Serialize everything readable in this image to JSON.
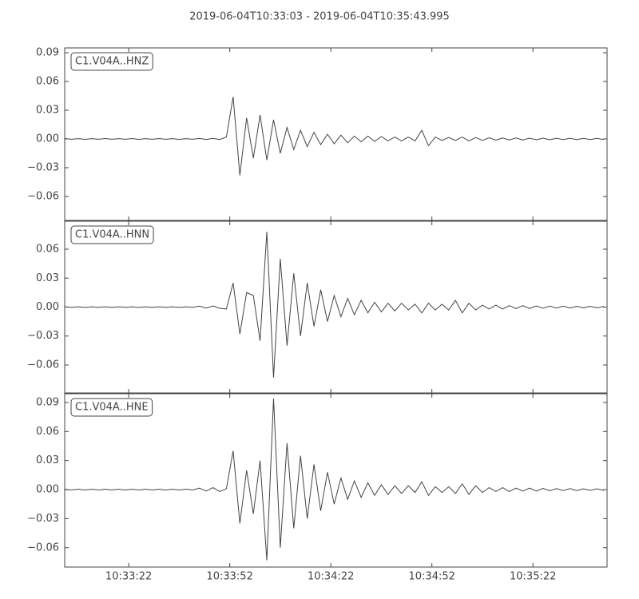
{
  "title": "2019-06-04T10:33:03  -  2019-06-04T10:35:43.995",
  "chart_data": [
    {
      "type": "line",
      "label": "C1.V04A..HNZ",
      "color": "#444444",
      "x": [
        "10:33:03",
        "10:33:05",
        "10:33:07",
        "10:33:09",
        "10:33:11",
        "10:33:13",
        "10:33:15",
        "10:33:17",
        "10:33:19",
        "10:33:21",
        "10:33:23",
        "10:33:25",
        "10:33:27",
        "10:33:29",
        "10:33:31",
        "10:33:33",
        "10:33:35",
        "10:33:37",
        "10:33:39",
        "10:33:41",
        "10:33:43",
        "10:33:45",
        "10:33:47",
        "10:33:49",
        "10:33:51",
        "10:33:53",
        "10:33:55",
        "10:33:57",
        "10:33:59",
        "10:34:01",
        "10:34:03",
        "10:34:05",
        "10:34:07",
        "10:34:09",
        "10:34:11",
        "10:34:13",
        "10:34:15",
        "10:34:17",
        "10:34:19",
        "10:34:21",
        "10:34:23",
        "10:34:25",
        "10:34:27",
        "10:34:29",
        "10:34:31",
        "10:34:33",
        "10:34:35",
        "10:34:37",
        "10:34:39",
        "10:34:41",
        "10:34:43",
        "10:34:45",
        "10:34:47",
        "10:34:49",
        "10:34:51",
        "10:34:53",
        "10:34:55",
        "10:34:57",
        "10:34:59",
        "10:35:01",
        "10:35:03",
        "10:35:05",
        "10:35:07",
        "10:35:09",
        "10:35:11",
        "10:35:13",
        "10:35:15",
        "10:35:17",
        "10:35:19",
        "10:35:21",
        "10:35:23",
        "10:35:25",
        "10:35:27",
        "10:35:29",
        "10:35:31",
        "10:35:33",
        "10:35:35",
        "10:35:37",
        "10:35:39",
        "10:35:41",
        "10:35:43"
      ],
      "values": [
        0.0004,
        -0.0003,
        0.0003,
        -0.0004,
        0.0003,
        -0.0003,
        0.0004,
        -0.0003,
        0.0003,
        -0.0003,
        0.0004,
        -0.0004,
        0.0003,
        -0.0003,
        0.0004,
        -0.0003,
        0.0003,
        -0.0004,
        0.0003,
        -0.0003,
        0.0005,
        -0.0005,
        0.0006,
        -0.0006,
        0.002,
        0.044,
        -0.038,
        0.022,
        -0.02,
        0.025,
        -0.022,
        0.02,
        -0.015,
        0.012,
        -0.011,
        0.009,
        -0.008,
        0.007,
        -0.006,
        0.005,
        -0.005,
        0.004,
        -0.004,
        0.003,
        -0.003,
        0.003,
        -0.0025,
        0.0025,
        -0.002,
        0.002,
        -0.002,
        0.002,
        -0.002,
        0.009,
        -0.007,
        0.002,
        -0.0015,
        0.0015,
        -0.0015,
        0.002,
        -0.002,
        0.0015,
        -0.0015,
        0.0012,
        -0.0012,
        0.001,
        -0.001,
        0.001,
        -0.001,
        0.0008,
        -0.0008,
        0.0008,
        -0.0008,
        0.0007,
        -0.0007,
        0.0007,
        -0.0007,
        0.0006,
        -0.0006,
        0.0006,
        -0.0006
      ],
      "xlim": [
        "10:33:03",
        "10:35:44"
      ],
      "xticks": [
        "10:33:22",
        "10:33:52",
        "10:34:22",
        "10:34:52",
        "10:35:22"
      ],
      "ylim": [
        -0.085,
        0.095
      ],
      "yticks": [
        {
          "value": -0.06,
          "label": "−0.06"
        },
        {
          "value": -0.03,
          "label": "−0.03"
        },
        {
          "value": 0,
          "label": "0.00"
        },
        0.03,
        0.06,
        0.09
      ]
    },
    {
      "type": "line",
      "label": "C1.V04A..HNN",
      "color": "#444444",
      "x": [
        "10:33:03",
        "10:33:05",
        "10:33:07",
        "10:33:09",
        "10:33:11",
        "10:33:13",
        "10:33:15",
        "10:33:17",
        "10:33:19",
        "10:33:21",
        "10:33:23",
        "10:33:25",
        "10:33:27",
        "10:33:29",
        "10:33:31",
        "10:33:33",
        "10:33:35",
        "10:33:37",
        "10:33:39",
        "10:33:41",
        "10:33:43",
        "10:33:45",
        "10:33:47",
        "10:33:49",
        "10:33:51",
        "10:33:53",
        "10:33:55",
        "10:33:57",
        "10:33:59",
        "10:34:01",
        "10:34:03",
        "10:34:05",
        "10:34:07",
        "10:34:09",
        "10:34:11",
        "10:34:13",
        "10:34:15",
        "10:34:17",
        "10:34:19",
        "10:34:21",
        "10:34:23",
        "10:34:25",
        "10:34:27",
        "10:34:29",
        "10:34:31",
        "10:34:33",
        "10:34:35",
        "10:34:37",
        "10:34:39",
        "10:34:41",
        "10:34:43",
        "10:34:45",
        "10:34:47",
        "10:34:49",
        "10:34:51",
        "10:34:53",
        "10:34:55",
        "10:34:57",
        "10:34:59",
        "10:35:01",
        "10:35:03",
        "10:35:05",
        "10:35:07",
        "10:35:09",
        "10:35:11",
        "10:35:13",
        "10:35:15",
        "10:35:17",
        "10:35:19",
        "10:35:21",
        "10:35:23",
        "10:35:25",
        "10:35:27",
        "10:35:29",
        "10:35:31",
        "10:35:33",
        "10:35:35",
        "10:35:37",
        "10:35:39",
        "10:35:41",
        "10:35:43"
      ],
      "values": [
        0.0003,
        -0.0003,
        0.0003,
        -0.0003,
        0.0003,
        -0.0003,
        0.0003,
        -0.0003,
        0.0003,
        -0.0003,
        0.0003,
        -0.0003,
        0.0003,
        -0.0003,
        0.0003,
        -0.0003,
        0.0003,
        -0.0003,
        0.0003,
        -0.0003,
        0.001,
        -0.001,
        0.0012,
        -0.0012,
        -0.002,
        0.025,
        -0.028,
        0.015,
        0.012,
        -0.035,
        0.078,
        -0.073,
        0.05,
        -0.04,
        0.035,
        -0.03,
        0.025,
        -0.02,
        0.018,
        -0.015,
        0.012,
        -0.01,
        0.009,
        -0.008,
        0.007,
        -0.006,
        0.005,
        -0.005,
        0.004,
        -0.004,
        0.004,
        -0.003,
        0.003,
        -0.006,
        0.004,
        -0.003,
        0.003,
        -0.003,
        0.007,
        -0.006,
        0.004,
        -0.003,
        0.002,
        -0.002,
        0.002,
        -0.002,
        0.0015,
        -0.0015,
        0.0015,
        -0.0015,
        0.0012,
        -0.0012,
        0.001,
        -0.001,
        0.001,
        -0.001,
        0.0008,
        -0.0008,
        0.0008,
        -0.0008,
        0.0007
      ],
      "xlim": [
        "10:33:03",
        "10:35:44"
      ],
      "xticks": [
        "10:33:22",
        "10:33:52",
        "10:34:22",
        "10:34:52",
        "10:35:22"
      ],
      "ylim": [
        -0.089,
        0.089
      ],
      "yticks": [
        {
          "value": -0.06,
          "label": "−0.06"
        },
        {
          "value": -0.03,
          "label": "−0.03"
        },
        {
          "value": 0,
          "label": "0.00"
        },
        0.03,
        0.06
      ]
    },
    {
      "type": "line",
      "label": "C1.V04A..HNE",
      "color": "#444444",
      "x": [
        "10:33:03",
        "10:33:05",
        "10:33:07",
        "10:33:09",
        "10:33:11",
        "10:33:13",
        "10:33:15",
        "10:33:17",
        "10:33:19",
        "10:33:21",
        "10:33:23",
        "10:33:25",
        "10:33:27",
        "10:33:29",
        "10:33:31",
        "10:33:33",
        "10:33:35",
        "10:33:37",
        "10:33:39",
        "10:33:41",
        "10:33:43",
        "10:33:45",
        "10:33:47",
        "10:33:49",
        "10:33:51",
        "10:33:53",
        "10:33:55",
        "10:33:57",
        "10:33:59",
        "10:34:01",
        "10:34:03",
        "10:34:05",
        "10:34:07",
        "10:34:09",
        "10:34:11",
        "10:34:13",
        "10:34:15",
        "10:34:17",
        "10:34:19",
        "10:34:21",
        "10:34:23",
        "10:34:25",
        "10:34:27",
        "10:34:29",
        "10:34:31",
        "10:34:33",
        "10:34:35",
        "10:34:37",
        "10:34:39",
        "10:34:41",
        "10:34:43",
        "10:34:45",
        "10:34:47",
        "10:34:49",
        "10:34:51",
        "10:34:53",
        "10:34:55",
        "10:34:57",
        "10:34:59",
        "10:35:01",
        "10:35:03",
        "10:35:05",
        "10:35:07",
        "10:35:09",
        "10:35:11",
        "10:35:13",
        "10:35:15",
        "10:35:17",
        "10:35:19",
        "10:35:21",
        "10:35:23",
        "10:35:25",
        "10:35:27",
        "10:35:29",
        "10:35:31",
        "10:35:33",
        "10:35:35",
        "10:35:37",
        "10:35:39",
        "10:35:41",
        "10:35:43"
      ],
      "values": [
        0.0004,
        -0.0004,
        0.0004,
        -0.0004,
        0.0004,
        -0.0004,
        0.0004,
        -0.0004,
        0.0004,
        -0.0004,
        0.0004,
        -0.0004,
        0.0004,
        -0.0004,
        0.0004,
        -0.0004,
        0.0004,
        -0.0004,
        0.0004,
        -0.0004,
        0.0015,
        -0.0015,
        0.002,
        -0.002,
        0.001,
        0.04,
        -0.035,
        0.02,
        -0.025,
        0.03,
        -0.073,
        0.094,
        -0.06,
        0.048,
        -0.04,
        0.035,
        -0.03,
        0.026,
        -0.022,
        0.018,
        -0.015,
        0.012,
        -0.01,
        0.009,
        -0.008,
        0.007,
        -0.006,
        0.005,
        -0.005,
        0.004,
        -0.004,
        0.004,
        -0.003,
        0.008,
        -0.006,
        0.003,
        -0.003,
        0.003,
        -0.004,
        0.006,
        -0.005,
        0.004,
        -0.003,
        0.002,
        -0.002,
        0.002,
        -0.002,
        0.0015,
        -0.0015,
        0.0015,
        -0.0015,
        0.0012,
        -0.0012,
        0.001,
        -0.001,
        0.001,
        -0.001,
        0.0008,
        -0.0008,
        0.0008,
        -0.0008
      ],
      "xlim": [
        "10:33:03",
        "10:35:44"
      ],
      "xticks": [
        "10:33:22",
        "10:33:52",
        "10:34:22",
        "10:34:52",
        "10:35:22"
      ],
      "ylim": [
        -0.08,
        0.099
      ],
      "yticks": [
        {
          "value": -0.06,
          "label": "−0.06"
        },
        {
          "value": -0.03,
          "label": "−0.03"
        },
        {
          "value": 0,
          "label": "0.00"
        },
        0.03,
        0.06,
        0.09
      ]
    }
  ]
}
